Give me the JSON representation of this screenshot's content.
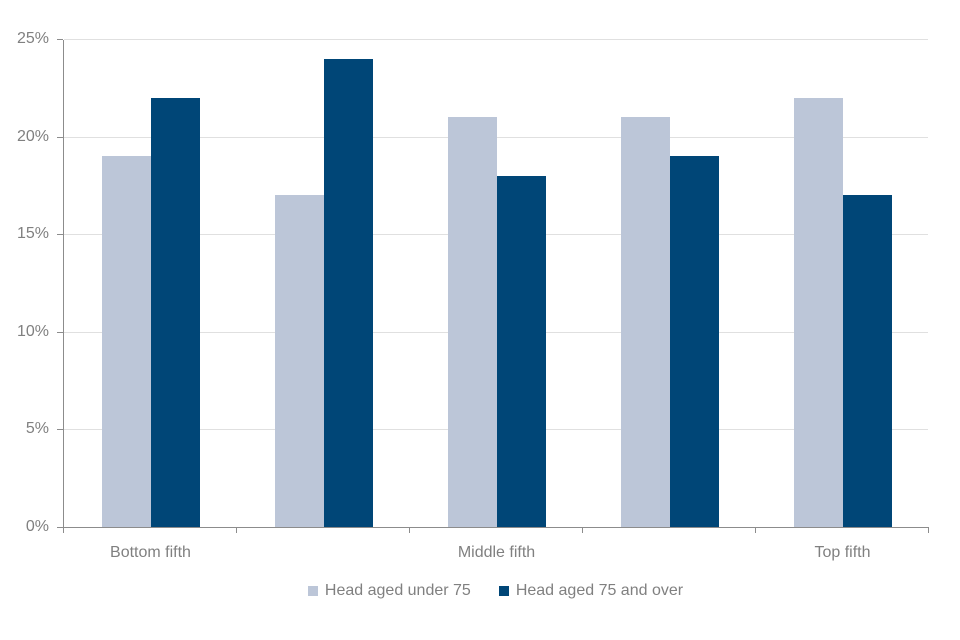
{
  "chart_data": {
    "type": "bar",
    "title": "",
    "categories": [
      "Bottom fifth",
      "",
      "Middle fifth",
      "",
      "Top fifth"
    ],
    "series": [
      {
        "name": "Head aged under 75",
        "color": "#bcc6d8",
        "values": [
          19,
          17,
          21,
          21,
          22
        ]
      },
      {
        "name": "Head aged 75 and over",
        "color": "#004677",
        "values": [
          22,
          24,
          18,
          19,
          17
        ]
      }
    ],
    "ylim": [
      0,
      25
    ],
    "y_tick_step": 5,
    "y_tick_labels": [
      "0%",
      "5%",
      "10%",
      "15%",
      "20%",
      "25%"
    ],
    "grid": true,
    "legend_position": "bottom",
    "axis_color": "#8c8c8c",
    "grid_color": "#e0e0e0",
    "label_color": "#808080",
    "background_color": "#ffffff"
  }
}
